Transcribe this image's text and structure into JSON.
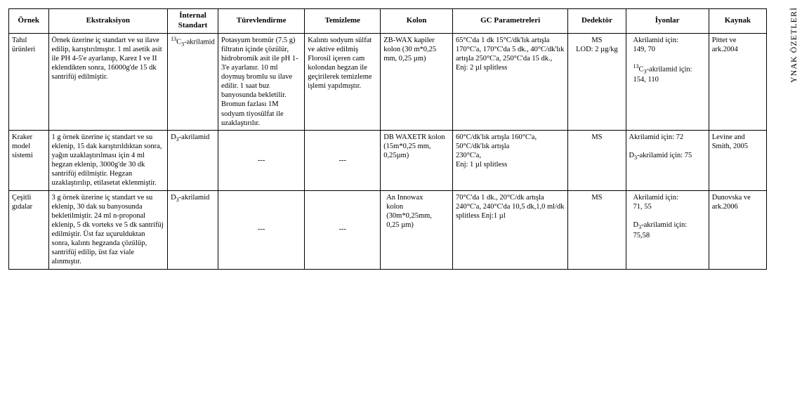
{
  "side_text": "YNAK ÖZETLERİ",
  "headers": {
    "c0": "Örnek",
    "c1": "Ekstraksiyon",
    "c2": "İnternal Standart",
    "c3": "Türevlendirme",
    "c4": "Temizleme",
    "c5": "Kolon",
    "c6": "GC Parametreleri",
    "c7": "Dedektör",
    "c8": "İyonlar",
    "c9": "Kaynak"
  },
  "rows": [
    {
      "ornek": "Tahıl ürünleri",
      "ekstraksiyon": "Örnek üzerine iç standart ve su ilave edilip, karıştırılmıştır. 1 ml asetik asit ile PH 4-5'e ayarlanıp, Karez I ve II eklendikten sonra, 16000g'de 15 dk santrifüj edilmiştir.",
      "internal_html": "<span class=\"sup\">13</span>C<span class=\"sub\">3</span>-akrilamid",
      "turev": "Potasyum bromür (7.5 g) filtratın içinde çözülür, hidrobromik asit ile pH 1-3'e ayarlanır. 10 ml doymuş bromlu su ilave edilir. 1 saat buz banyosunda bekletilir. Bromun fazlası 1M sodyum tiyosülfat ile uzaklaştırılır.",
      "temizleme": "Kalıntı sodyum sülfat ve aktive edilmiş Florosil içeren cam kolondan hegzan ile geçirilerek temizleme işlemi yapılmıştır.",
      "kolon": "ZB-WAX kapiler kolon  (30 m*0,25 mm, 0,25 µm)",
      "gc_html": "65°C'da 1 dk 15°C/dk'lık artışla 170°C'a, 170°C'da 5 dk., 40°C/dk'lık artışla 250°C'a, 250°C'da 15 dk.,<br>Enj: 2 µl splitless",
      "dedektor": "MS\nLOD: 2 µg/kg",
      "iyon_html": "<span class=\"indent-ion\">Akrilamid için:</span><span class=\"indent-ion\">149, 70</span><br><span class=\"indent-ion\"><span class=\"sup\">13</span>C<span class=\"sub\">3</span>-akrilamid için:</span><span class=\"indent-ion\">154, 110</span>",
      "kaynak": "Pittet ve ark.2004"
    },
    {
      "ornek": "Kraker model sistemi",
      "ekstraksiyon": "1 g örnek üzerine iç standart ve su eklenip, 15 dak karıştırıldıktan sonra, yağın uzaklaştırılması için 4 ml hegzan eklenip, 3000g'de 30 dk santrifüj edilmiştir. Hegzan uzaklaştırılıp, etilasetat eklenmiştir.",
      "internal_html": "D<span class=\"sub\">3</span>-akrilamid",
      "turev": "---",
      "turev_center": true,
      "temizleme": "---",
      "temizleme_center": true,
      "kolon": "DB WAXETR kolon (15m*0,25 mm, 0,25µm)",
      "gc_html": "60°C/dk'lık artışla 160°C'a,<br>50°C/dk'lık artışla<br>230°C'a,<br>Enj: 1 µl splitless",
      "dedektor": "MS",
      "iyon_html": "Akrilamid için: 72<br><br>D<span class=\"sub\">3</span>-akrilamid için: 75",
      "kaynak": "Levine and Smith, 2005"
    },
    {
      "ornek": "Çeşitli gıdalar",
      "ekstraksiyon": "3 g örnek üzerine iç standart ve su eklenip, 30 dak su banyosunda bekletilmiştir. 24 ml n-proponal eklenip, 5 dk vorteks ve 5 dk santrifüj edilmiştir. Üst faz uçurulduktan sonra, kalıntı hegzanda çözülüp, santrifüj edilip, üst faz viale alınmıştır.",
      "internal_html": "D<span class=\"sub\">3</span>-akrilamid",
      "turev": "---",
      "turev_center": true,
      "temizleme": "---",
      "temizleme_center": true,
      "kolon_html": "<span class=\"indent-ion2\">An Innowax</span><span class=\"indent-ion2\">kolon</span><span class=\"indent-ion2\">(30m*0,25mm,</span><span class=\"indent-ion2\">0,25 µm)</span>",
      "gc_html": "70°C'da 1 dk., 20°C/dk artışla 240°C'a, 240°C'da 10,5 dk,1,0 ml/dk splitless Enj:1 µl",
      "dedektor": "MS",
      "iyon_html": "<span class=\"indent-ion\">Akrilamid için:</span><span class=\"indent-ion\">71, 55</span><br><span class=\"indent-ion\">D<span class=\"sub\">3</span>-akrilamid için:</span><span class=\"indent-ion\">75,58</span>",
      "kaynak": "Dunovska ve ark.2006"
    }
  ]
}
